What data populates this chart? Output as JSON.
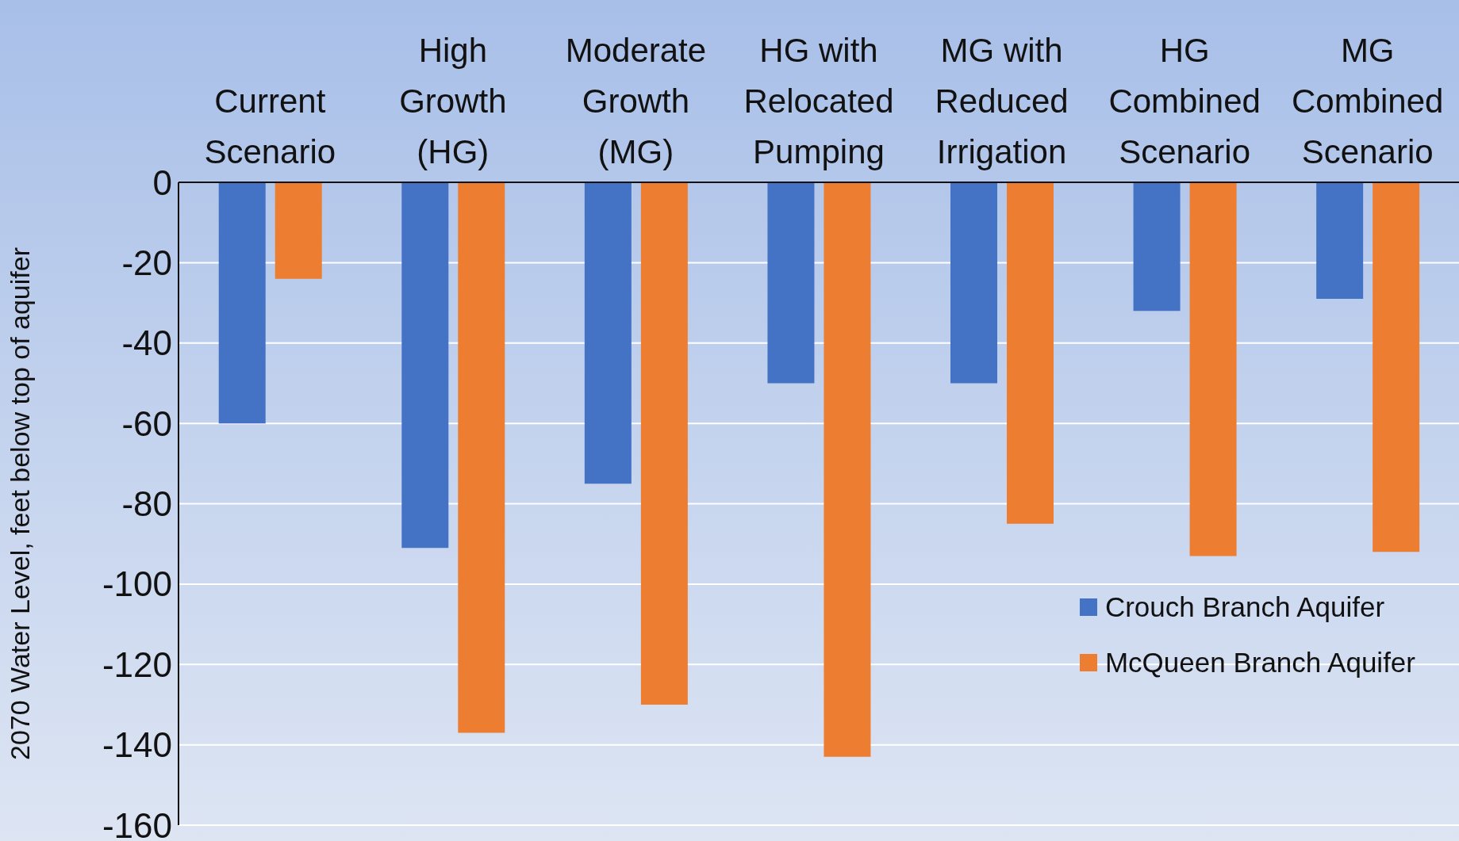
{
  "chart_data": {
    "type": "bar",
    "ylabel": "2070 Water Level, feet below top of aquifer",
    "categories": [
      "Current Scenario",
      "High Growth (HG)",
      "Moderate Growth (MG)",
      "HG with Relocated Pumping",
      "MG with Reduced Irrigation",
      "HG Combined Scenario",
      "MG Combined Scenario"
    ],
    "series": [
      {
        "name": "Crouch Branch Aquifer",
        "color": "#4472c4",
        "values": [
          -60,
          -91,
          -75,
          -50,
          -50,
          -32,
          -29
        ]
      },
      {
        "name": "McQueen Branch Aquifer",
        "color": "#ed7d31",
        "values": [
          -24,
          -137,
          -130,
          -143,
          -85,
          -93,
          -92
        ]
      }
    ],
    "ylim": [
      -160,
      0
    ],
    "yticks": [
      -160,
      -140,
      -120,
      -100,
      -80,
      -60,
      -40,
      -20,
      0
    ],
    "grid": "y",
    "legend": "bottom right"
  }
}
